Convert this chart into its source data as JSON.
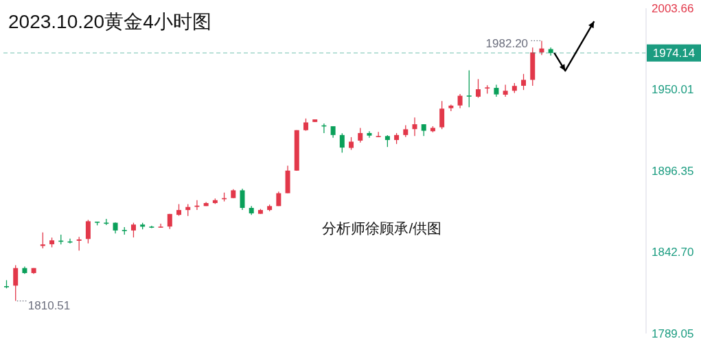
{
  "chart_data": {
    "type": "candlestick",
    "title": "2023.10.20黄金4小时图",
    "categories": [
      null,
      null,
      null,
      null,
      null,
      null,
      null,
      null,
      null,
      null,
      null,
      null,
      null,
      null,
      null,
      null,
      null,
      null,
      null,
      null,
      null,
      null,
      null,
      null,
      null,
      null,
      null,
      null,
      null,
      null,
      null,
      null,
      null,
      null,
      null,
      null,
      null,
      null,
      null,
      null,
      null,
      null,
      null,
      null,
      null,
      null,
      null,
      null,
      null,
      null,
      null,
      null,
      null,
      null,
      null,
      null,
      null,
      null,
      null,
      null,
      null,
      null,
      null,
      null,
      null,
      null,
      null,
      null,
      null,
      null,
      null
    ],
    "ohlc": [
      [
        1820.2,
        1824.2,
        1818.8,
        1819.6
      ],
      [
        1820.6,
        1834.1,
        1810.51,
        1832.2
      ],
      [
        1832.2,
        1833.2,
        1828.3,
        1828.9
      ],
      [
        1828.9,
        1832.2,
        1828.3,
        1832.2
      ],
      [
        1846.8,
        1855.7,
        1845.2,
        1847.8
      ],
      [
        1847.9,
        1852.3,
        1845.9,
        1850.5
      ],
      [
        1850.2,
        1854.3,
        1847.8,
        1849.7
      ],
      [
        1849.7,
        1851.7,
        1848.5,
        1849.1
      ],
      [
        1850.2,
        1852.8,
        1843.7,
        1851.1
      ],
      [
        1851.4,
        1864.0,
        1848.5,
        1863.1
      ],
      [
        1862.6,
        1862.8,
        1860.4,
        1862.3
      ],
      [
        1862.1,
        1864.7,
        1860.6,
        1861.5
      ],
      [
        1862.1,
        1862.3,
        1855.0,
        1857.0
      ],
      [
        1857.3,
        1859.2,
        1854.3,
        1856.6
      ],
      [
        1857.0,
        1862.1,
        1852.4,
        1860.9
      ],
      [
        1860.9,
        1862.1,
        1857.8,
        1859.5
      ],
      [
        1859.5,
        1860.1,
        1858.6,
        1858.9
      ],
      [
        1858.9,
        1861.5,
        1858.9,
        1859.5
      ],
      [
        1859.6,
        1868.0,
        1858.0,
        1867.9
      ],
      [
        1867.3,
        1874.4,
        1866.7,
        1870.5
      ],
      [
        1870.5,
        1874.4,
        1866.6,
        1872.5
      ],
      [
        1872.6,
        1877.0,
        1870.5,
        1873.4
      ],
      [
        1873.1,
        1875.8,
        1873.1,
        1875.1
      ],
      [
        1875.1,
        1878.1,
        1874.5,
        1877.0
      ],
      [
        1877.7,
        1882.0,
        1876.2,
        1878.3
      ],
      [
        1878.4,
        1884.2,
        1878.4,
        1883.5
      ],
      [
        1883.5,
        1884.6,
        1870.5,
        1871.9
      ],
      [
        1871.9,
        1873.1,
        1867.3,
        1868.3
      ],
      [
        1868.0,
        1871.2,
        1868.0,
        1870.5
      ],
      [
        1870.5,
        1874.1,
        1869.7,
        1873.1
      ],
      [
        1873.1,
        1882.7,
        1873.1,
        1881.6
      ],
      [
        1881.6,
        1899.8,
        1881.6,
        1896.5
      ],
      [
        1896.5,
        1923.2,
        1896.5,
        1923.2
      ],
      [
        1923.2,
        1930.9,
        1922.8,
        1928.3
      ],
      [
        1928.6,
        1930.3,
        1928.6,
        1930.3
      ],
      [
        1926.3,
        1927.6,
        1921.3,
        1925.7
      ],
      [
        1925.8,
        1925.8,
        1918.2,
        1920.0
      ],
      [
        1920.0,
        1921.1,
        1908.3,
        1911.7
      ],
      [
        1911.5,
        1918.6,
        1910.2,
        1915.6
      ],
      [
        1916.3,
        1924.7,
        1915.0,
        1921.3
      ],
      [
        1921.3,
        1922.5,
        1918.2,
        1919.6
      ],
      [
        1918.7,
        1922.1,
        1918.7,
        1919.3
      ],
      [
        1919.3,
        1919.9,
        1912.1,
        1916.7
      ],
      [
        1916.7,
        1921.3,
        1914.1,
        1920.0
      ],
      [
        1920.0,
        1926.5,
        1918.7,
        1923.8
      ],
      [
        1923.9,
        1931.6,
        1919.3,
        1927.1
      ],
      [
        1927.1,
        1927.1,
        1919.3,
        1922.8
      ],
      [
        1922.5,
        1925.8,
        1921.8,
        1924.7
      ],
      [
        1925.1,
        1942.4,
        1923.9,
        1937.4
      ],
      [
        1937.7,
        1940.1,
        1935.8,
        1939.4
      ],
      [
        1939.5,
        1947.1,
        1937.7,
        1945.9
      ],
      [
        1945.9,
        1962.7,
        1938.4,
        1945.5
      ],
      [
        1945.3,
        1956.9,
        1944.6,
        1950.2
      ],
      [
        1950.7,
        1952.8,
        1947.3,
        1951.4
      ],
      [
        1951.1,
        1953.2,
        1945.2,
        1946.8
      ],
      [
        1946.6,
        1953.2,
        1945.3,
        1949.2
      ],
      [
        1949.2,
        1954.3,
        1947.8,
        1952.4
      ],
      [
        1952.5,
        1960.3,
        1949.7,
        1956.4
      ],
      [
        1956.4,
        1977.7,
        1952.5,
        1974.5
      ],
      [
        1974.5,
        1982.2,
        1972.8,
        1977.1
      ],
      [
        1976.7,
        1977.7,
        1972.4,
        1974.14
      ],
      null,
      null,
      null,
      null,
      null,
      null,
      null,
      null,
      null,
      null
    ],
    "colors": [
      "#0aa05a",
      "#e2384a",
      "#0aa05a",
      "#e2384a",
      "#e2384a",
      "#e2384a",
      "#0aa05a",
      "#0aa05a",
      "#e2384a",
      "#e2384a",
      "#0aa05a",
      "#0aa05a",
      "#0aa05a",
      "#0aa05a",
      "#e2384a",
      "#0aa05a",
      "#0aa05a",
      "#e2384a",
      "#e2384a",
      "#e2384a",
      "#e2384a",
      "#e2384a",
      "#e2384a",
      "#e2384a",
      "#e2384a",
      "#e2384a",
      "#0aa05a",
      "#0aa05a",
      "#e2384a",
      "#e2384a",
      "#e2384a",
      "#e2384a",
      "#e2384a",
      "#e2384a",
      "#e2384a",
      "#0aa05a",
      "#0aa05a",
      "#0aa05a",
      "#e2384a",
      "#e2384a",
      "#0aa05a",
      "#e2384a",
      "#0aa05a",
      "#e2384a",
      "#e2384a",
      "#e2384a",
      "#0aa05a",
      "#e2384a",
      "#e2384a",
      "#e2384a",
      "#e2384a",
      "#0aa05a",
      "#e2384a",
      "#e2384a",
      "#0aa05a",
      "#e2384a",
      "#e2384a",
      "#e2384a",
      "#e2384a",
      "#e2384a",
      "#0aa05a",
      null,
      null,
      null,
      null,
      null,
      null,
      null,
      null,
      null,
      null
    ],
    "ylim": [
      1789.05,
      2003.66
    ],
    "yticks": [
      1789.05,
      {
        "value": 1842.7,
        "label": "1842.70"
      },
      1896.35,
      1950.01,
      2003.66
    ],
    "tick_labels": "y",
    "ref_lines": [
      {
        "axis": "y",
        "value": 1974.14,
        "label": "1974.14",
        "color": "#1b9c80",
        "line_style": "dashed"
      }
    ],
    "annotations": [
      "1982.20",
      "1810.51",
      "分析师徐顾承/供图"
    ]
  }
}
